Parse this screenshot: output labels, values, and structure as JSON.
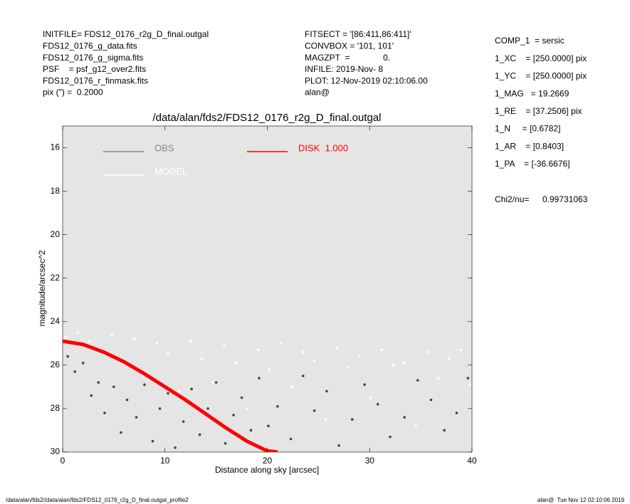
{
  "header": {
    "left": [
      "INITFILE= FDS12_0176_r2g_D_final.outgal",
      "FDS12_0176_g_data.fits",
      "FDS12_0176_g_sigma.fits",
      "PSF    = psf_g12_over2.fits",
      "FDS12_0176_r_finmask.fits",
      "pix (\") =  0.2000"
    ],
    "middle": [
      "FITSECT = '[86:411,86:411]'",
      "CONVBOX = '101, 101'",
      "MAGZPT  =              0.",
      "INFILE: 2019-Nov- 8",
      "PLOT: 12-Nov-2019 02:10:06.00",
      "alan@"
    ],
    "right": [
      "COMP_1  = sersic",
      "1_XC    = [250.0000] pix",
      "1_YC    = [250.0000] pix",
      "1_MAG   = 19.2669",
      "1_RE    = [37.2506] pix",
      "1_N     = [0.6782]",
      "1_AR    = [0.8403]",
      "1_PA    = [-36.6676]"
    ],
    "chi2": {
      "label": "Chi2/nu=",
      "value": 0.99731063
    }
  },
  "footer": {
    "left": "/data/alan/fds2//data/alan/fds2/FDS12_0176_r2g_D_final.outgal_profile2",
    "right": "alan@  Tue Nov 12 02:10:06 2019"
  },
  "chart_data": {
    "type": "scatter",
    "title": "/data/alan/fds2/FDS12_0176_r2g_D_final.outgal",
    "xlabel": "Distance along sky [arcsec]",
    "ylabel": "magnitude/arcsec^2",
    "xlim": [
      0,
      40
    ],
    "xticks": [
      0,
      10,
      20,
      30,
      40
    ],
    "ylim": [
      30,
      15
    ],
    "yticks": [
      16,
      18,
      20,
      22,
      24,
      26,
      28,
      30
    ],
    "background": "#e5e5e5",
    "series": [
      {
        "name": "MODEL",
        "color": "#ffffff",
        "mark": "points",
        "x": [
          0.3,
          1.5,
          2.6,
          3.7,
          4.8,
          5.9,
          7.0,
          8.1,
          9.2,
          10.3,
          11.4,
          12.5,
          13.6,
          14.7,
          15.8,
          16.9,
          18.0,
          19.1,
          20.2,
          21.3,
          22.4,
          23.5,
          24.6,
          25.7,
          26.8,
          27.9,
          29.0,
          30.1,
          31.2,
          32.3,
          33.4,
          34.5,
          35.6,
          36.7,
          37.8,
          38.9,
          39.8
        ],
        "values": [
          24.7,
          24.5,
          24.9,
          25.3,
          24.6,
          25.8,
          24.8,
          26.4,
          25.0,
          25.5,
          27.2,
          24.9,
          25.7,
          26.8,
          25.1,
          25.9,
          28.0,
          25.3,
          26.2,
          25.0,
          27.0,
          25.4,
          25.8,
          28.5,
          25.2,
          26.1,
          25.6,
          27.5,
          25.3,
          26.0,
          25.9,
          28.8,
          25.4,
          26.6,
          25.7,
          25.3,
          26.9
        ]
      },
      {
        "name": "OBS",
        "color": "#888888",
        "point_color": "#444444",
        "mark": "points",
        "x": [
          0.5,
          1.2,
          2.0,
          2.8,
          3.5,
          4.1,
          5.0,
          5.7,
          6.3,
          7.2,
          8.0,
          8.8,
          9.5,
          10.3,
          11.0,
          11.8,
          12.6,
          13.4,
          14.2,
          15.0,
          15.9,
          16.7,
          17.5,
          18.4,
          19.2,
          20.1,
          21.0,
          22.3,
          23.5,
          24.6,
          25.8,
          27.0,
          28.3,
          29.5,
          30.8,
          32.0,
          33.4,
          34.7,
          36.0,
          37.3,
          38.5,
          39.6
        ],
        "values": [
          25.6,
          26.3,
          25.9,
          27.4,
          26.8,
          28.2,
          27.0,
          29.1,
          27.6,
          28.4,
          26.9,
          29.5,
          28.0,
          27.3,
          29.8,
          28.6,
          27.1,
          29.2,
          28.0,
          26.8,
          29.6,
          28.3,
          27.5,
          29.0,
          26.6,
          28.8,
          27.9,
          29.4,
          26.5,
          28.1,
          27.2,
          29.7,
          28.5,
          26.9,
          27.8,
          29.3,
          28.4,
          26.7,
          27.6,
          29.0,
          28.2,
          26.6
        ]
      },
      {
        "name": "DISK  1.000",
        "color": "#ff0000",
        "mark": "line",
        "x": [
          0,
          2,
          4,
          6,
          8,
          10,
          12,
          14,
          16,
          18,
          20,
          21
        ],
        "values": [
          24.9,
          25.05,
          25.4,
          25.85,
          26.4,
          27.0,
          27.6,
          28.25,
          28.9,
          29.5,
          29.95,
          30.0
        ]
      }
    ]
  }
}
